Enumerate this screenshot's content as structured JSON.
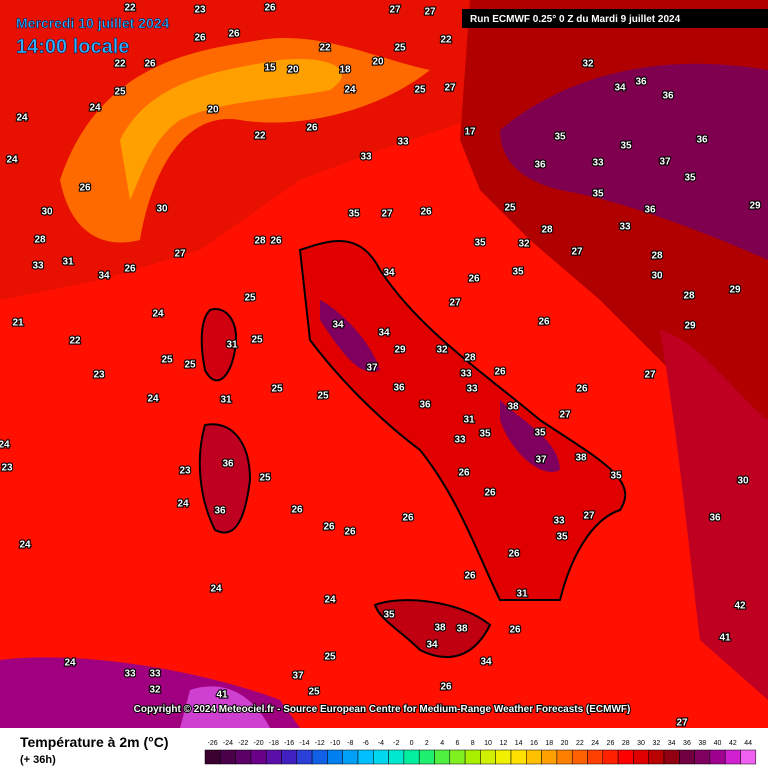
{
  "header": {
    "date": "Mercredi 10 juillet 2024",
    "time": "14:00 locale",
    "run": "Run ECMWF 0.25° 0 Z du Mardi 9 juillet 2024"
  },
  "copyright": "Copyright © 2024 Meteociel.fr - Source European Centre for Medium-Range Weather Forecasts (ECMWF)",
  "legend": {
    "title": "Température à 2m (°C)",
    "subtitle": "(+ 36h)",
    "ticks": [
      -26,
      -24,
      -22,
      -20,
      -18,
      -16,
      -14,
      -12,
      -10,
      -8,
      -6,
      -4,
      -2,
      0,
      2,
      4,
      6,
      8,
      10,
      12,
      14,
      16,
      18,
      20,
      22,
      24,
      26,
      28,
      30,
      32,
      34,
      36,
      38,
      40,
      42,
      44
    ],
    "colors": [
      "#3a0030",
      "#4a0048",
      "#5a0066",
      "#6a0088",
      "#5a10a8",
      "#4020c0",
      "#2a40d8",
      "#1060e8",
      "#0080f0",
      "#00a0f8",
      "#00c0ff",
      "#00d8f0",
      "#00e8d0",
      "#00f0a0",
      "#20f070",
      "#50f040",
      "#80f020",
      "#a8f000",
      "#d0f000",
      "#f0f000",
      "#ffe000",
      "#ffc000",
      "#ffa000",
      "#ff8000",
      "#ff6000",
      "#ff4000",
      "#ff2000",
      "#ff0000",
      "#e00000",
      "#b80000",
      "#900010",
      "#700040",
      "#800060",
      "#a00090",
      "#d020d0",
      "#f060f0"
    ]
  },
  "map": {
    "labels": [
      22,
      23,
      26,
      27,
      27,
      26,
      26,
      22,
      25,
      22,
      22,
      26,
      15,
      20,
      18,
      20,
      25,
      24,
      25,
      27,
      32,
      34,
      36,
      36,
      24,
      24,
      20,
      22,
      26,
      17,
      35,
      35,
      36,
      33,
      33,
      36,
      33,
      37,
      35,
      24,
      26,
      30,
      30,
      35,
      36,
      29,
      35,
      27,
      26,
      25,
      28,
      33,
      28,
      33,
      31,
      27,
      28,
      26,
      35,
      32,
      27,
      28,
      34,
      26,
      34,
      26,
      35,
      30,
      21,
      24,
      25,
      27,
      26,
      28,
      29,
      22,
      34,
      34,
      31,
      25,
      29,
      32,
      28,
      29,
      23,
      25,
      25,
      37,
      33,
      26,
      27,
      25,
      25,
      36,
      33,
      26,
      24,
      31,
      31,
      38,
      27,
      36,
      33,
      35,
      35,
      24,
      36,
      25,
      26,
      37,
      38,
      35,
      23,
      23,
      36,
      24,
      26,
      26,
      26,
      26,
      26,
      33,
      27,
      36,
      24,
      35,
      26,
      24,
      26,
      31,
      24,
      35,
      38,
      38,
      34,
      34,
      26,
      24,
      33,
      33,
      32,
      37,
      25,
      26,
      41,
      25,
      27,
      41,
      42,
      30
    ]
  }
}
